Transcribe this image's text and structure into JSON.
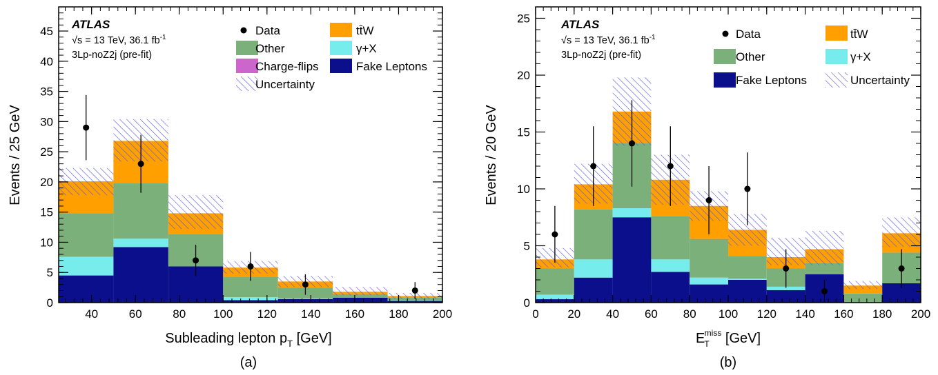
{
  "colors": {
    "data": "#000000",
    "ttW": "#ff9f00",
    "other": "#7cb07a",
    "gammaX": "#76ecec",
    "charge_flips": "#cc66cc",
    "fake_leptons": "#0c0f8c",
    "uncertainty": "#5c5ce0"
  },
  "chart_data": [
    {
      "type": "bar",
      "panel_label": "(a)",
      "atlas_label": "ATLAS",
      "energy_text": "√s = 13 TeV, 36.1 fb",
      "lumi_superscript": "-1",
      "region_text": "3Lp-noZ2j (pre-fit)",
      "xlabel_main": "Subleading lepton p",
      "xlabel_sub": "T",
      "xlabel_unit": " [GeV]",
      "ylabel": "Events / 25 GeV",
      "xlim": [
        25,
        200
      ],
      "ylim": [
        0,
        49
      ],
      "xticks": [
        40,
        60,
        80,
        100,
        120,
        140,
        160,
        180,
        200
      ],
      "yticks": [
        0,
        5,
        10,
        15,
        20,
        25,
        30,
        35,
        40,
        45
      ],
      "grid": false,
      "legend_placement": "top",
      "legend": {
        "data": "Data",
        "ttw": "tt̄W",
        "other": "Other",
        "gamma_x": "γ+X",
        "charge_flips": "Charge-flips",
        "fake_leptons": "Fake Leptons",
        "uncertainty": "Uncertainty"
      },
      "bin_edges": [
        25,
        50,
        75,
        100,
        125,
        150,
        175,
        200
      ],
      "series": [
        {
          "name": "Fake Leptons",
          "values": [
            4.5,
            9.2,
            6.0,
            0.4,
            0.6,
            0.8,
            0.3
          ]
        },
        {
          "name": "γ+X",
          "values": [
            3.1,
            1.4,
            0.0,
            0.5,
            0.1,
            0.0,
            0.1
          ]
        },
        {
          "name": "Charge-flips",
          "values": [
            0.0,
            0.0,
            0.0,
            0.0,
            0.0,
            0.0,
            0.0
          ]
        },
        {
          "name": "Other",
          "values": [
            7.2,
            9.2,
            5.4,
            3.4,
            1.8,
            0.6,
            0.4
          ]
        },
        {
          "name": "tt̄W",
          "values": [
            5.3,
            7.0,
            3.4,
            1.5,
            1.0,
            0.4,
            0.3
          ]
        }
      ],
      "uncertainty": {
        "up": [
          22.3,
          30.4,
          17.8,
          6.9,
          4.4,
          2.6,
          1.6
        ],
        "down": [
          17.8,
          23.4,
          12.2,
          4.8,
          2.6,
          1.2,
          0.6
        ]
      },
      "data_points": {
        "x": [
          37.5,
          62.5,
          87.5,
          112.5,
          137.5,
          187.5
        ],
        "y": [
          29,
          23,
          7,
          6,
          3,
          2
        ],
        "err_up": [
          5.4,
          4.8,
          2.6,
          2.4,
          1.7,
          1.4
        ],
        "err_down": [
          5.4,
          4.8,
          2.6,
          2.4,
          1.7,
          1.4
        ]
      }
    },
    {
      "type": "bar",
      "panel_label": "(b)",
      "atlas_label": "ATLAS",
      "energy_text": "√s = 13 TeV, 36.1 fb",
      "lumi_superscript": "-1",
      "region_text": "3Lp-noZ2j (pre-fit)",
      "xlabel_main": "E",
      "xlabel_sub": "T",
      "xlabel_sup": "miss",
      "xlabel_unit": " [GeV]",
      "ylabel": "Events / 20 GeV",
      "xlim": [
        0,
        200
      ],
      "ylim": [
        0,
        26
      ],
      "xticks": [
        0,
        20,
        40,
        60,
        80,
        100,
        120,
        140,
        160,
        180,
        200
      ],
      "yticks": [
        0,
        5,
        10,
        15,
        20,
        25
      ],
      "grid": false,
      "legend_placement": "top",
      "legend": {
        "data": "Data",
        "ttw": "tt̄W",
        "other": "Other",
        "gamma_x": "γ+X",
        "fake_leptons": "Fake Leptons",
        "uncertainty": "Uncertainty"
      },
      "bin_edges": [
        0,
        20,
        40,
        60,
        80,
        100,
        120,
        140,
        160,
        180,
        200
      ],
      "series": [
        {
          "name": "Fake Leptons",
          "values": [
            0.3,
            2.2,
            7.5,
            2.7,
            1.6,
            2.0,
            1.1,
            2.5,
            0.0,
            1.7
          ]
        },
        {
          "name": "γ+X",
          "values": [
            0.4,
            1.6,
            0.8,
            1.1,
            0.6,
            0.1,
            0.3,
            0.0,
            0.0,
            0.0
          ]
        },
        {
          "name": "Other",
          "values": [
            2.3,
            4.4,
            5.7,
            3.8,
            3.4,
            2.0,
            1.6,
            1.0,
            0.8,
            2.7
          ]
        },
        {
          "name": "tt̄W",
          "values": [
            0.8,
            2.2,
            2.8,
            3.2,
            2.9,
            2.3,
            1.0,
            1.2,
            0.7,
            1.7
          ]
        }
      ],
      "uncertainty": {
        "up": [
          4.8,
          12.2,
          19.8,
          13.0,
          9.8,
          7.8,
          5.7,
          6.3,
          1.9,
          7.5
        ],
        "down": [
          3.1,
          8.7,
          13.8,
          8.6,
          7.2,
          5.0,
          3.3,
          3.3,
          1.2,
          4.9
        ]
      },
      "data_points": {
        "x": [
          10,
          30,
          50,
          70,
          90,
          110,
          130,
          150,
          190
        ],
        "y": [
          6,
          12,
          14,
          12,
          9,
          10,
          3,
          1,
          3
        ],
        "err_up": [
          2.5,
          3.5,
          3.8,
          3.5,
          3.0,
          3.2,
          1.7,
          1.0,
          1.7
        ],
        "err_down": [
          2.5,
          3.5,
          3.8,
          3.5,
          3.0,
          3.2,
          1.7,
          1.0,
          1.7
        ]
      }
    }
  ]
}
